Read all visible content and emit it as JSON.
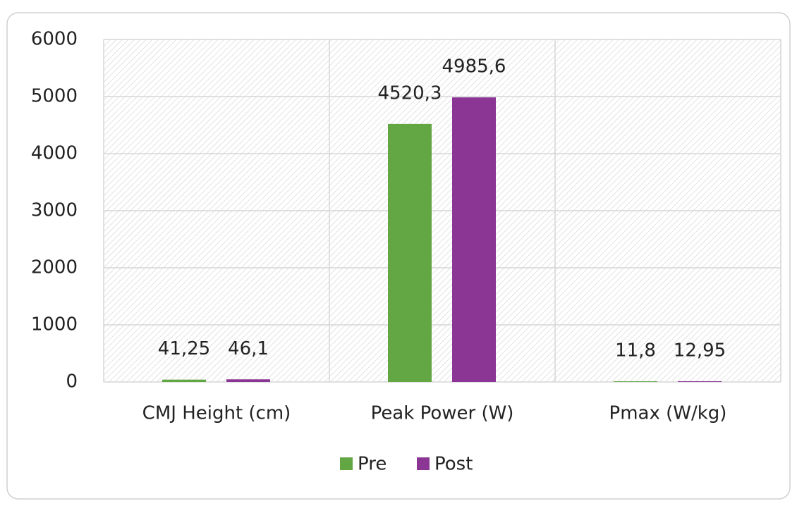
{
  "chart_data": {
    "type": "bar",
    "categories": [
      "CMJ Height (cm)",
      "Peak Power (W)",
      "Pmax (W/kg)"
    ],
    "series": [
      {
        "name": "Pre",
        "color": "#63a644",
        "values": [
          41.25,
          4520.3,
          11.8
        ],
        "value_labels": [
          "41,25",
          "4520,3",
          "11,8"
        ]
      },
      {
        "name": "Post",
        "color": "#8b3594",
        "values": [
          46.1,
          4985.6,
          12.95
        ],
        "value_labels": [
          "46,1",
          "4985,6",
          "12,95"
        ]
      }
    ],
    "ylim": [
      0,
      6000
    ],
    "yticks": [
      0,
      1000,
      2000,
      3000,
      4000,
      5000,
      6000
    ],
    "grid": true,
    "legend": "bottom"
  }
}
